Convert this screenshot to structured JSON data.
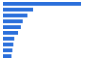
{
  "chart_data": {
    "type": "bar",
    "orientation": "horizontal",
    "categories": [
      null,
      null,
      null,
      null,
      null,
      null,
      null,
      null,
      null,
      null
    ],
    "values": [
      83,
      32,
      26,
      21,
      19,
      16,
      12,
      11,
      10,
      9
    ],
    "color": "#2a6fdb",
    "xlim": [
      0,
      100
    ],
    "xticks": [
      0,
      25,
      50,
      75,
      100
    ],
    "grid": false,
    "tick_labels": false
  }
}
